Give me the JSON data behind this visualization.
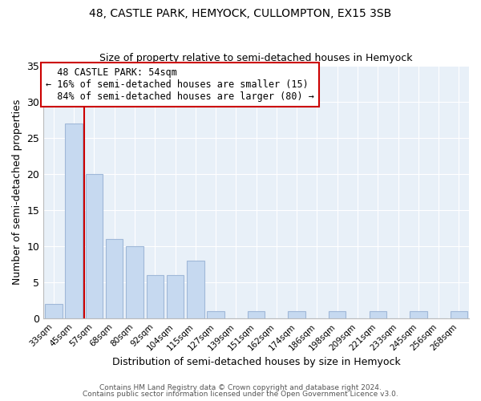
{
  "title": "48, CASTLE PARK, HEMYOCK, CULLOMPTON, EX15 3SB",
  "subtitle": "Size of property relative to semi-detached houses in Hemyock",
  "xlabel": "Distribution of semi-detached houses by size in Hemyock",
  "ylabel": "Number of semi-detached properties",
  "bin_labels": [
    "33sqm",
    "45sqm",
    "57sqm",
    "68sqm",
    "80sqm",
    "92sqm",
    "104sqm",
    "115sqm",
    "127sqm",
    "139sqm",
    "151sqm",
    "162sqm",
    "174sqm",
    "186sqm",
    "198sqm",
    "209sqm",
    "221sqm",
    "233sqm",
    "245sqm",
    "256sqm",
    "268sqm"
  ],
  "bin_counts": [
    2,
    27,
    20,
    11,
    10,
    6,
    6,
    8,
    1,
    0,
    1,
    0,
    1,
    0,
    1,
    0,
    1,
    0,
    1,
    0,
    1
  ],
  "bar_color": "#c6d9f0",
  "bar_edge_color": "#a0b8d8",
  "marker_label": "48 CASTLE PARK: 54sqm",
  "pct_smaller": 16,
  "pct_larger": 84,
  "n_smaller": 15,
  "n_larger": 80,
  "vline_color": "#cc0000",
  "annotation_box_color": "#ffffff",
  "annotation_box_edge": "#cc0000",
  "ylim": [
    0,
    35
  ],
  "yticks": [
    0,
    5,
    10,
    15,
    20,
    25,
    30,
    35
  ],
  "bg_color": "#ffffff",
  "plot_bg_color": "#e8f0f8",
  "grid_color": "#ffffff",
  "footer1": "Contains HM Land Registry data © Crown copyright and database right 2024.",
  "footer2": "Contains public sector information licensed under the Open Government Licence v3.0."
}
